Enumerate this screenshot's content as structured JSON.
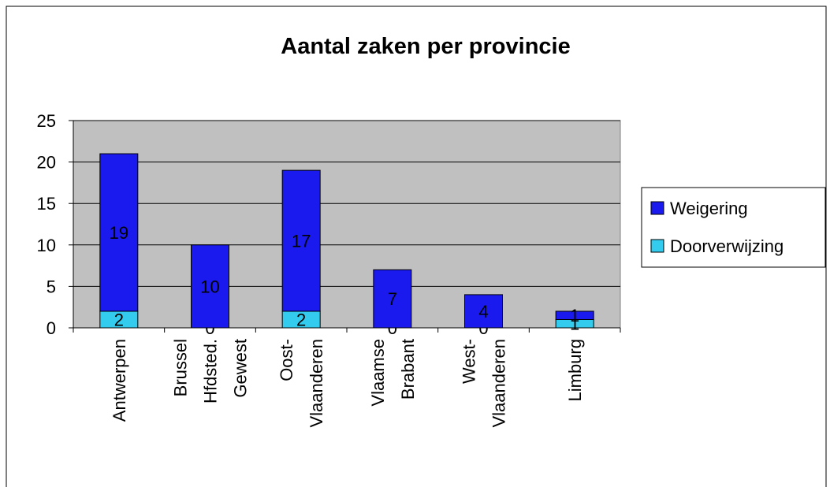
{
  "chart_data": {
    "type": "stacked_bar",
    "title": "Aantal zaken per provincie",
    "categories": [
      [
        "Antwerpen"
      ],
      [
        "Brussel",
        "Hfdsted.",
        "Gewest"
      ],
      [
        "Oost-",
        "Vlaanderen"
      ],
      [
        "Vlaamse",
        "Brabant"
      ],
      [
        "West-",
        "Vlaanderen"
      ],
      [
        "Limburg"
      ]
    ],
    "series": [
      {
        "name": "Doorverwijzing",
        "color": "#33ccee",
        "values": [
          2,
          0,
          2,
          0,
          0,
          1
        ]
      },
      {
        "name": "Weigering",
        "color": "#1a1aee",
        "values": [
          19,
          10,
          17,
          7,
          4,
          1
        ]
      }
    ],
    "ylim": [
      0,
      25
    ],
    "yticks": [
      0,
      5,
      10,
      15,
      20,
      25
    ],
    "grid": true,
    "legend": "right"
  }
}
